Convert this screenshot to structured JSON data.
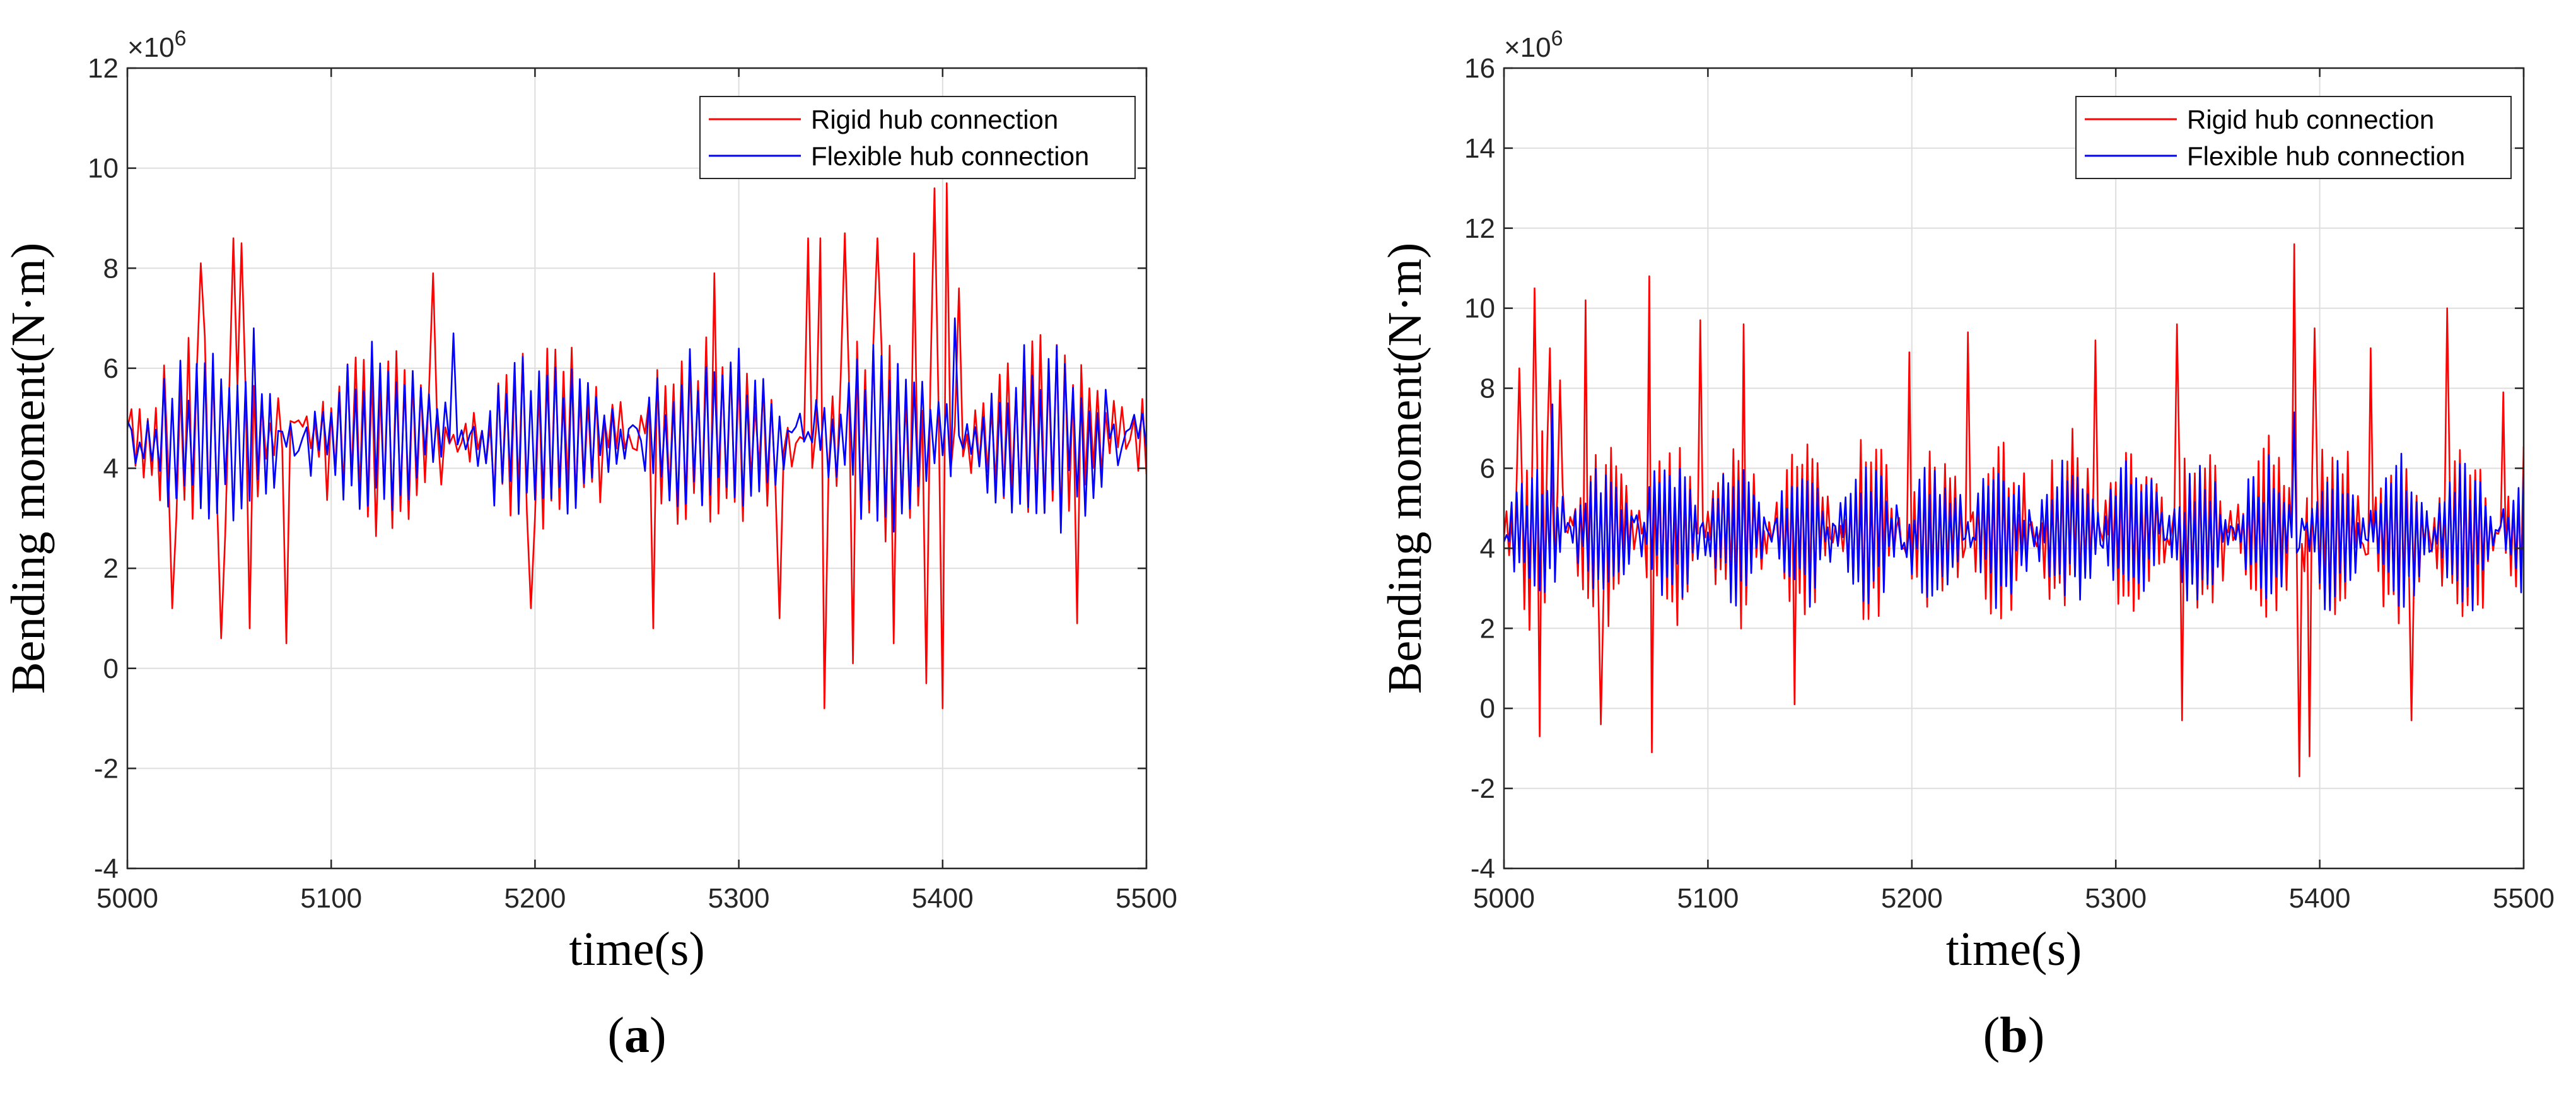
{
  "colors": {
    "rigid": "#FF0000",
    "flexible": "#0000FF",
    "grid": "#DEDEDE",
    "axis": "#262626"
  },
  "chart_data": [
    {
      "type": "line",
      "panel_label": {
        "open": "(",
        "letter": "a",
        "close": ")"
      },
      "xlabel": "time(s)",
      "ylabel": "Bending moment(N·m)",
      "y_exponent_label": "×10",
      "y_exponent_power": "6",
      "xlim": [
        5000,
        5500
      ],
      "ylim": [
        -4,
        12
      ],
      "xticks": [
        "5000",
        "5100",
        "5200",
        "5300",
        "5400",
        "5500"
      ],
      "yticks": [
        "-4",
        "-2",
        "0",
        "2",
        "4",
        "6",
        "8",
        "10",
        "12"
      ],
      "grid": true,
      "legend_position": "top-right",
      "series": [
        {
          "name": "Rigid hub connection",
          "color": "#FF0000",
          "dt": 2.0,
          "base": 4.6,
          "amp": 1.6,
          "period": 4.1,
          "extreme_events": [
            {
              "t": 5022,
              "v": 1.2
            },
            {
              "t": 5036,
              "v": 8.1
            },
            {
              "t": 5046,
              "v": 0.6
            },
            {
              "t": 5052,
              "v": 8.6
            },
            {
              "t": 5056,
              "v": 8.5
            },
            {
              "t": 5060,
              "v": 0.8
            },
            {
              "t": 5077,
              "v": 0.5
            },
            {
              "t": 5150,
              "v": 7.9
            },
            {
              "t": 5197,
              "v": 1.2
            },
            {
              "t": 5258,
              "v": 0.8
            },
            {
              "t": 5288,
              "v": 7.9
            },
            {
              "t": 5320,
              "v": 1.0
            },
            {
              "t": 5334,
              "v": 8.6
            },
            {
              "t": 5340,
              "v": 8.6
            },
            {
              "t": 5342,
              "v": -0.8
            },
            {
              "t": 5352,
              "v": 8.7
            },
            {
              "t": 5356,
              "v": 0.1
            },
            {
              "t": 5368,
              "v": 8.6
            },
            {
              "t": 5376,
              "v": 0.5
            },
            {
              "t": 5386,
              "v": 8.3
            },
            {
              "t": 5391,
              "v": -0.3
            },
            {
              "t": 5396,
              "v": 9.6
            },
            {
              "t": 5399,
              "v": -0.8
            },
            {
              "t": 5401,
              "v": 9.7
            },
            {
              "t": 5407,
              "v": 7.6
            },
            {
              "t": 5466,
              "v": 0.9
            }
          ]
        },
        {
          "name": "Flexible hub connection",
          "color": "#0000FF",
          "dt": 2.0,
          "base": 4.6,
          "amp": 1.5,
          "period": 4.1,
          "extreme_events": [
            {
              "t": 5062,
              "v": 6.8
            },
            {
              "t": 5160,
              "v": 6.7
            },
            {
              "t": 5405,
              "v": 7.0
            }
          ]
        }
      ]
    },
    {
      "type": "line",
      "panel_label": {
        "open": "(",
        "letter": "b",
        "close": ")"
      },
      "xlabel": "time(s)",
      "ylabel": "Bending moment(N·m)",
      "y_exponent_label": "×10",
      "y_exponent_power": "6",
      "xlim": [
        5000,
        5500
      ],
      "ylim": [
        -4,
        16
      ],
      "xticks": [
        "5000",
        "5100",
        "5200",
        "5300",
        "5400",
        "5500"
      ],
      "yticks": [
        "-4",
        "-2",
        "0",
        "2",
        "4",
        "6",
        "8",
        "10",
        "12",
        "14",
        "16"
      ],
      "grid": true,
      "legend_position": "top-right",
      "series": [
        {
          "name": "Rigid hub connection",
          "color": "#FF0000",
          "dt": 1.25,
          "base": 4.4,
          "amp": 1.9,
          "period": 2.6,
          "extreme_events": [
            {
              "t": 5008,
              "v": 8.5
            },
            {
              "t": 5015,
              "v": 10.5
            },
            {
              "t": 5018,
              "v": -0.7
            },
            {
              "t": 5022,
              "v": 9.0
            },
            {
              "t": 5028,
              "v": 8.2
            },
            {
              "t": 5040,
              "v": 10.2
            },
            {
              "t": 5047,
              "v": -0.4
            },
            {
              "t": 5071,
              "v": 10.8
            },
            {
              "t": 5073,
              "v": -1.1
            },
            {
              "t": 5096,
              "v": 9.7
            },
            {
              "t": 5118,
              "v": 9.6
            },
            {
              "t": 5142,
              "v": 0.1
            },
            {
              "t": 5199,
              "v": 8.9
            },
            {
              "t": 5227,
              "v": 9.4
            },
            {
              "t": 5290,
              "v": 9.2
            },
            {
              "t": 5330,
              "v": 9.6
            },
            {
              "t": 5333,
              "v": -0.3
            },
            {
              "t": 5388,
              "v": 11.6
            },
            {
              "t": 5390,
              "v": -1.7
            },
            {
              "t": 5395,
              "v": -1.2
            },
            {
              "t": 5397,
              "v": 9.5
            },
            {
              "t": 5425,
              "v": 9.0
            },
            {
              "t": 5445,
              "v": -0.3
            },
            {
              "t": 5463,
              "v": 10.0
            },
            {
              "t": 5490,
              "v": 7.9
            }
          ]
        },
        {
          "name": "Flexible hub connection",
          "color": "#0000FF",
          "dt": 1.25,
          "base": 4.4,
          "amp": 1.5,
          "period": 2.6,
          "extreme_events": [
            {
              "t": 5024,
              "v": 7.6
            },
            {
              "t": 5388,
              "v": 7.4
            }
          ]
        }
      ]
    }
  ]
}
